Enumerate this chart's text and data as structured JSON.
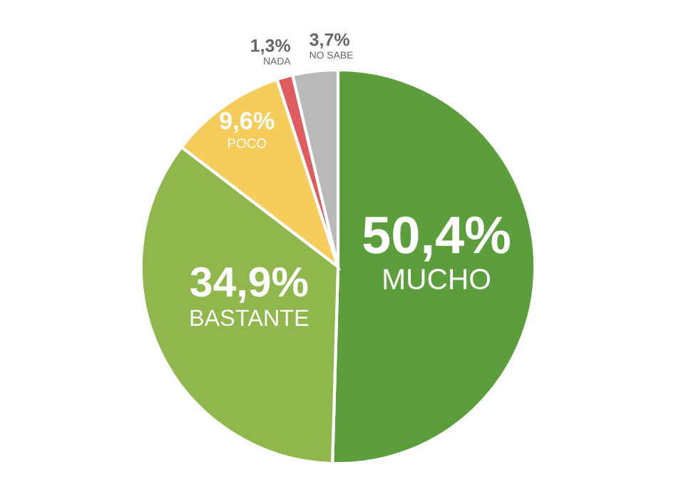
{
  "chart_data": {
    "type": "pie",
    "categories": [
      "MUCHO",
      "BASTANTE",
      "POCO",
      "NADA",
      "NO SABE"
    ],
    "values": [
      50.4,
      34.9,
      9.6,
      1.3,
      3.7
    ],
    "value_labels": [
      "50,4%",
      "34,9%",
      "9,6%",
      "1,3%",
      "3,7%"
    ],
    "colors": [
      "#5c9e3c",
      "#8fb74b",
      "#f6cd5a",
      "#df5b5e",
      "#b9b9b9"
    ]
  }
}
